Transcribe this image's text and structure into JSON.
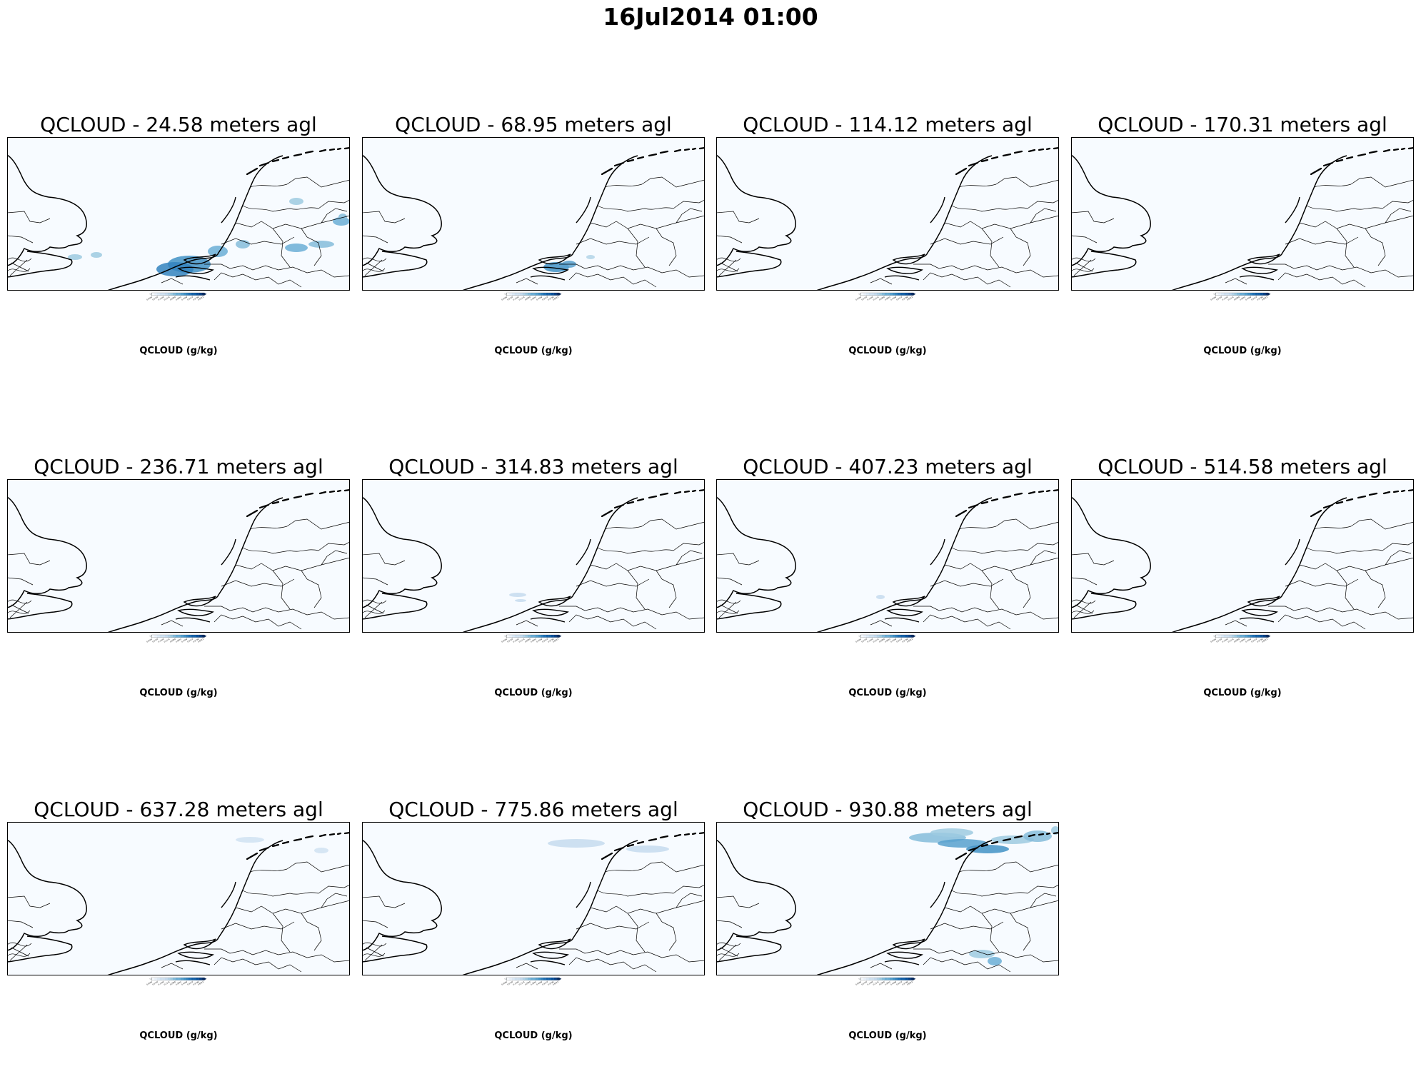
{
  "figure": {
    "title": "16Jul2014 01:00"
  },
  "chart_data": {
    "type": "heatmap",
    "colorbar": {
      "label": "QCLOUD (g/kg)",
      "ticks": [
        "0.0000",
        "0.0725",
        "0.1449",
        "0.2174",
        "0.2899",
        "0.3624",
        "0.4348",
        "0.5073",
        "0.5798",
        "0.6522"
      ],
      "range": [
        0.0,
        0.6522
      ],
      "levels": 20,
      "extend": "both",
      "colormap": "Blues",
      "colors": [
        "#f7fbff",
        "#eaf2fb",
        "#deebf7",
        "#d0e2f2",
        "#c6dbef",
        "#b3d3e8",
        "#9ecae1",
        "#85bcdb",
        "#6baed6",
        "#57a0ce",
        "#4292c6",
        "#3282be",
        "#2171b5",
        "#1562a9",
        "#08519c",
        "#084287",
        "#08306b"
      ]
    },
    "panels": [
      {
        "title": "QCLOUD - 24.58 meters agl",
        "height_m": 24.58
      },
      {
        "title": "QCLOUD - 68.95 meters agl",
        "height_m": 68.95
      },
      {
        "title": "QCLOUD - 114.12 meters agl",
        "height_m": 114.12
      },
      {
        "title": "QCLOUD - 170.31 meters agl",
        "height_m": 170.31
      },
      {
        "title": "QCLOUD - 236.71 meters agl",
        "height_m": 236.71
      },
      {
        "title": "QCLOUD - 314.83 meters agl",
        "height_m": 314.83
      },
      {
        "title": "QCLOUD - 407.23 meters agl",
        "height_m": 407.23
      },
      {
        "title": "QCLOUD - 514.58 meters agl",
        "height_m": 514.58
      },
      {
        "title": "QCLOUD - 637.28 meters agl",
        "height_m": 637.28
      },
      {
        "title": "QCLOUD - 775.86 meters agl",
        "height_m": 775.86
      },
      {
        "title": "QCLOUD - 930.88 meters agl",
        "height_m": 930.88
      }
    ]
  }
}
